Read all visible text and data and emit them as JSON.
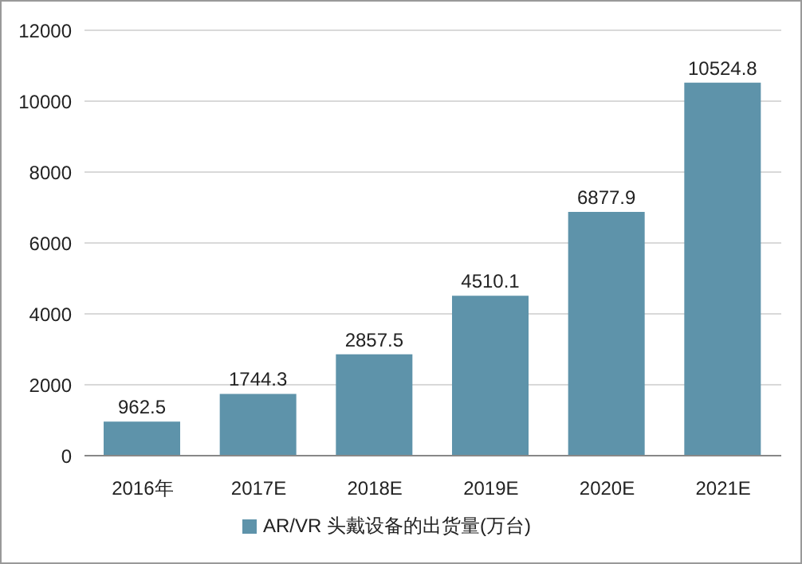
{
  "chart_data": {
    "type": "bar",
    "categories": [
      "2016年",
      "2017E",
      "2018E",
      "2019E",
      "2020E",
      "2021E"
    ],
    "series": [
      {
        "name": "AR/VR 头戴设备的出货量(万台)",
        "color": "#5e93aa",
        "values": [
          962.5,
          1744.3,
          2857.5,
          4510.1,
          6877.9,
          10524.8
        ]
      }
    ],
    "ylim": [
      0,
      12000
    ],
    "yticks": [
      0,
      2000,
      4000,
      6000,
      8000,
      10000,
      12000
    ],
    "grid": "y",
    "legend": "bottom",
    "data_labels": true
  }
}
